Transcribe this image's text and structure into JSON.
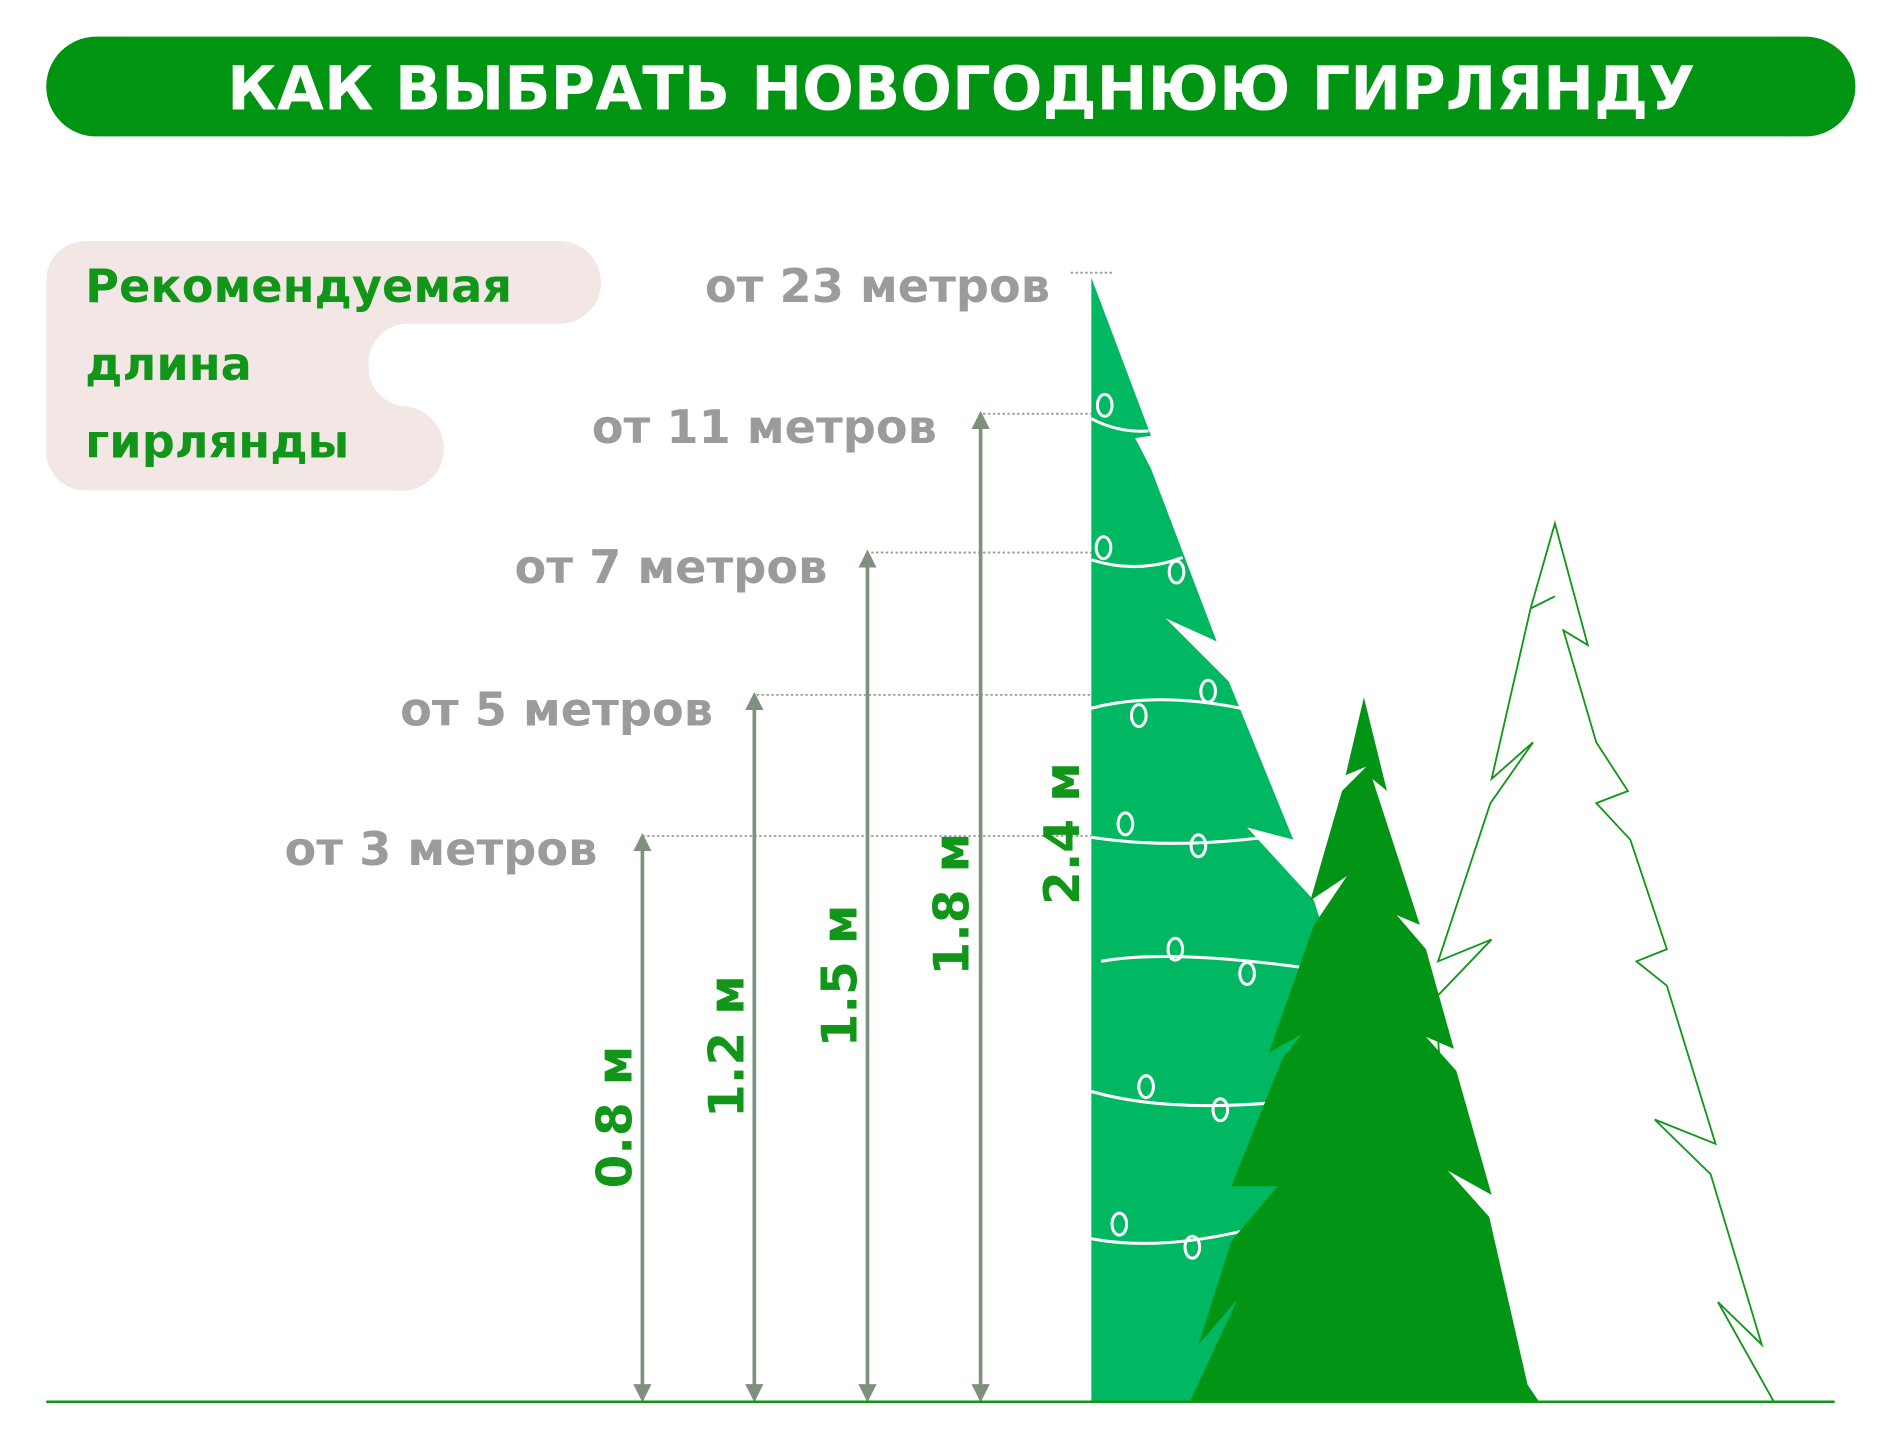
{
  "title": "КАК ВЫБРАТЬ НОВОГОДНЮЮ ГИРЛЯНДУ",
  "legend_box": {
    "line1": "Рекомендуемая",
    "line2": "длина",
    "line3": "гирлянды"
  },
  "levels": [
    {
      "height": "0.8 м",
      "length": "от 3 метров"
    },
    {
      "height": "1.2 м",
      "length": "от 5 метров"
    },
    {
      "height": "1.5 м",
      "length": "от 7 метров"
    },
    {
      "height": "1.8 м",
      "length": "от 11 метров"
    },
    {
      "height": "2.4 м",
      "length": "от 23 метров"
    }
  ],
  "colors": {
    "brand_green": "#009413",
    "tree_light": "#00b862",
    "tree_dark": "#029415",
    "label_gray": "#9b9b9b",
    "box_pink": "#f3e7e6",
    "arrow": "#7f907f"
  }
}
